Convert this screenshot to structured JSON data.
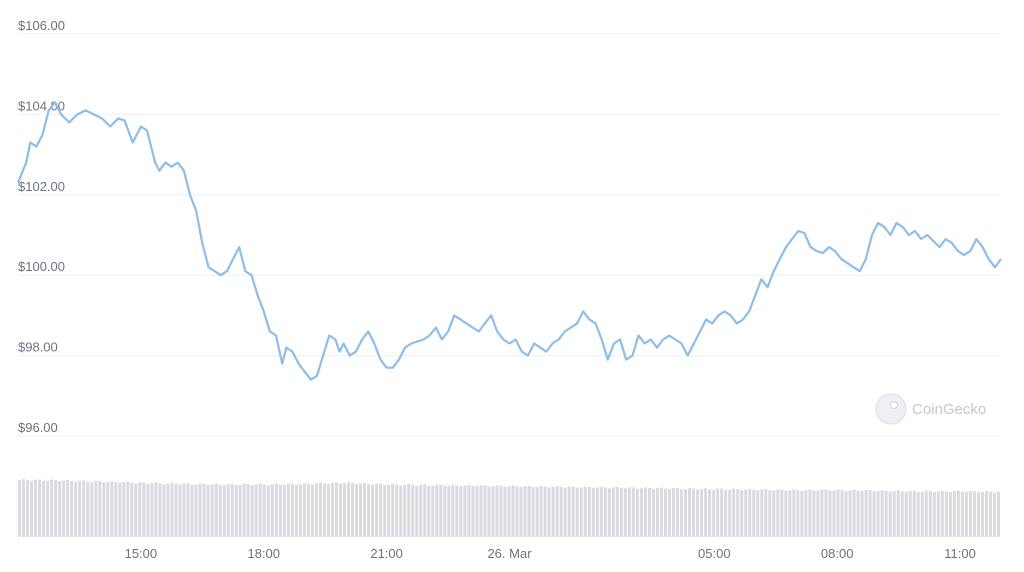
{
  "chart_data": {
    "type": "line",
    "title": "",
    "xlabel": "",
    "ylabel": "",
    "ylim": [
      96,
      106
    ],
    "ytick_labels": [
      {
        "value": 106,
        "label": "$106.00"
      },
      {
        "value": 104,
        "label": "$104.00"
      },
      {
        "value": 102,
        "label": "$102.00"
      },
      {
        "value": 100,
        "label": "$100.00"
      },
      {
        "value": 98,
        "label": "$98.00"
      },
      {
        "value": 96,
        "label": "$96.00"
      }
    ],
    "xlim": [
      0,
      24
    ],
    "xtick_labels": [
      {
        "t": 3,
        "label": "15:00"
      },
      {
        "t": 6,
        "label": "18:00"
      },
      {
        "t": 9,
        "label": "21:00"
      },
      {
        "t": 12,
        "label": "26. Mar"
      },
      {
        "t": 17,
        "label": "05:00"
      },
      {
        "t": 20,
        "label": "08:00"
      },
      {
        "t": 23,
        "label": "11:00"
      }
    ],
    "grid": true,
    "line_color": "#8dbde8",
    "volume_color": "#d9dbe0",
    "series": [
      {
        "values": [
          [
            0.0,
            102.3
          ],
          [
            0.2,
            102.8
          ],
          [
            0.3,
            103.3
          ],
          [
            0.45,
            103.2
          ],
          [
            0.6,
            103.5
          ],
          [
            0.75,
            104.1
          ],
          [
            0.9,
            104.3
          ],
          [
            1.05,
            104.0
          ],
          [
            1.25,
            103.8
          ],
          [
            1.45,
            104.0
          ],
          [
            1.65,
            104.1
          ],
          [
            1.85,
            104.0
          ],
          [
            2.05,
            103.9
          ],
          [
            2.25,
            103.7
          ],
          [
            2.45,
            103.9
          ],
          [
            2.6,
            103.85
          ],
          [
            2.8,
            103.3
          ],
          [
            3.0,
            103.7
          ],
          [
            3.15,
            103.6
          ],
          [
            3.25,
            103.2
          ],
          [
            3.35,
            102.8
          ],
          [
            3.45,
            102.6
          ],
          [
            3.6,
            102.8
          ],
          [
            3.75,
            102.7
          ],
          [
            3.9,
            102.8
          ],
          [
            4.05,
            102.6
          ],
          [
            4.2,
            102.0
          ],
          [
            4.35,
            101.6
          ],
          [
            4.5,
            100.8
          ],
          [
            4.65,
            100.2
          ],
          [
            4.8,
            100.1
          ],
          [
            4.95,
            100.0
          ],
          [
            5.1,
            100.1
          ],
          [
            5.25,
            100.4
          ],
          [
            5.4,
            100.7
          ],
          [
            5.55,
            100.1
          ],
          [
            5.7,
            100.0
          ],
          [
            5.85,
            99.5
          ],
          [
            6.0,
            99.1
          ],
          [
            6.15,
            98.6
          ],
          [
            6.3,
            98.5
          ],
          [
            6.45,
            97.8
          ],
          [
            6.55,
            98.2
          ],
          [
            6.7,
            98.1
          ],
          [
            6.85,
            97.8
          ],
          [
            7.0,
            97.6
          ],
          [
            7.15,
            97.4
          ],
          [
            7.3,
            97.5
          ],
          [
            7.45,
            98.0
          ],
          [
            7.6,
            98.5
          ],
          [
            7.75,
            98.4
          ],
          [
            7.85,
            98.1
          ],
          [
            7.95,
            98.3
          ],
          [
            8.1,
            98.0
          ],
          [
            8.25,
            98.1
          ],
          [
            8.4,
            98.4
          ],
          [
            8.55,
            98.6
          ],
          [
            8.7,
            98.3
          ],
          [
            8.85,
            97.9
          ],
          [
            9.0,
            97.7
          ],
          [
            9.15,
            97.7
          ],
          [
            9.3,
            97.9
          ],
          [
            9.45,
            98.2
          ],
          [
            9.6,
            98.3
          ],
          [
            9.75,
            98.35
          ],
          [
            9.9,
            98.4
          ],
          [
            10.05,
            98.5
          ],
          [
            10.2,
            98.7
          ],
          [
            10.35,
            98.4
          ],
          [
            10.5,
            98.6
          ],
          [
            10.65,
            99.0
          ],
          [
            10.8,
            98.9
          ],
          [
            10.95,
            98.8
          ],
          [
            11.1,
            98.7
          ],
          [
            11.25,
            98.6
          ],
          [
            11.4,
            98.8
          ],
          [
            11.55,
            99.0
          ],
          [
            11.7,
            98.6
          ],
          [
            11.85,
            98.4
          ],
          [
            12.0,
            98.3
          ],
          [
            12.15,
            98.4
          ],
          [
            12.3,
            98.1
          ],
          [
            12.45,
            98.0
          ],
          [
            12.6,
            98.3
          ],
          [
            12.75,
            98.2
          ],
          [
            12.9,
            98.1
          ],
          [
            13.05,
            98.3
          ],
          [
            13.2,
            98.4
          ],
          [
            13.35,
            98.6
          ],
          [
            13.5,
            98.7
          ],
          [
            13.65,
            98.8
          ],
          [
            13.8,
            99.1
          ],
          [
            13.95,
            98.9
          ],
          [
            14.1,
            98.8
          ],
          [
            14.25,
            98.4
          ],
          [
            14.4,
            97.9
          ],
          [
            14.55,
            98.3
          ],
          [
            14.7,
            98.4
          ],
          [
            14.85,
            97.9
          ],
          [
            15.0,
            98.0
          ],
          [
            15.15,
            98.5
          ],
          [
            15.3,
            98.3
          ],
          [
            15.45,
            98.4
          ],
          [
            15.6,
            98.2
          ],
          [
            15.75,
            98.4
          ],
          [
            15.9,
            98.5
          ],
          [
            16.05,
            98.4
          ],
          [
            16.2,
            98.3
          ],
          [
            16.35,
            98.0
          ],
          [
            16.5,
            98.3
          ],
          [
            16.65,
            98.6
          ],
          [
            16.8,
            98.9
          ],
          [
            16.95,
            98.8
          ],
          [
            17.1,
            99.0
          ],
          [
            17.25,
            99.1
          ],
          [
            17.4,
            99.0
          ],
          [
            17.55,
            98.8
          ],
          [
            17.7,
            98.9
          ],
          [
            17.85,
            99.1
          ],
          [
            18.0,
            99.5
          ],
          [
            18.15,
            99.9
          ],
          [
            18.3,
            99.7
          ],
          [
            18.45,
            100.1
          ],
          [
            18.6,
            100.4
          ],
          [
            18.75,
            100.7
          ],
          [
            18.9,
            100.9
          ],
          [
            19.05,
            101.1
          ],
          [
            19.2,
            101.05
          ],
          [
            19.35,
            100.7
          ],
          [
            19.5,
            100.6
          ],
          [
            19.65,
            100.55
          ],
          [
            19.8,
            100.7
          ],
          [
            19.95,
            100.6
          ],
          [
            20.1,
            100.4
          ],
          [
            20.25,
            100.3
          ],
          [
            20.4,
            100.2
          ],
          [
            20.55,
            100.1
          ],
          [
            20.7,
            100.4
          ],
          [
            20.85,
            101.0
          ],
          [
            21.0,
            101.3
          ],
          [
            21.15,
            101.2
          ],
          [
            21.3,
            101.0
          ],
          [
            21.45,
            101.3
          ],
          [
            21.6,
            101.2
          ],
          [
            21.75,
            101.0
          ],
          [
            21.9,
            101.1
          ],
          [
            22.05,
            100.9
          ],
          [
            22.2,
            101.0
          ],
          [
            22.35,
            100.85
          ],
          [
            22.5,
            100.7
          ],
          [
            22.65,
            100.9
          ],
          [
            22.8,
            100.8
          ],
          [
            22.95,
            100.6
          ],
          [
            23.1,
            100.5
          ],
          [
            23.25,
            100.6
          ],
          [
            23.4,
            100.9
          ],
          [
            23.55,
            100.7
          ],
          [
            23.7,
            100.4
          ],
          [
            23.85,
            100.2
          ],
          [
            24.0,
            100.4
          ]
        ]
      }
    ],
    "volume": [
      [
        0,
        1.0
      ],
      [
        1,
        0.99
      ],
      [
        2,
        0.97
      ],
      [
        3,
        0.95
      ],
      [
        4,
        0.93
      ],
      [
        5,
        0.92
      ],
      [
        6,
        0.92
      ],
      [
        7,
        0.93
      ],
      [
        8,
        0.95
      ],
      [
        9,
        0.92
      ],
      [
        10,
        0.91
      ],
      [
        11,
        0.9
      ],
      [
        12,
        0.89
      ],
      [
        13,
        0.88
      ],
      [
        14,
        0.87
      ],
      [
        15,
        0.86
      ],
      [
        16,
        0.85
      ],
      [
        17,
        0.84
      ],
      [
        18,
        0.83
      ],
      [
        19,
        0.82
      ],
      [
        20,
        0.82
      ],
      [
        21,
        0.81
      ],
      [
        22,
        0.8
      ],
      [
        23,
        0.8
      ],
      [
        24,
        0.79
      ]
    ]
  },
  "watermark": {
    "text": "CoinGecko",
    "icon": "coingecko-logo-icon"
  }
}
